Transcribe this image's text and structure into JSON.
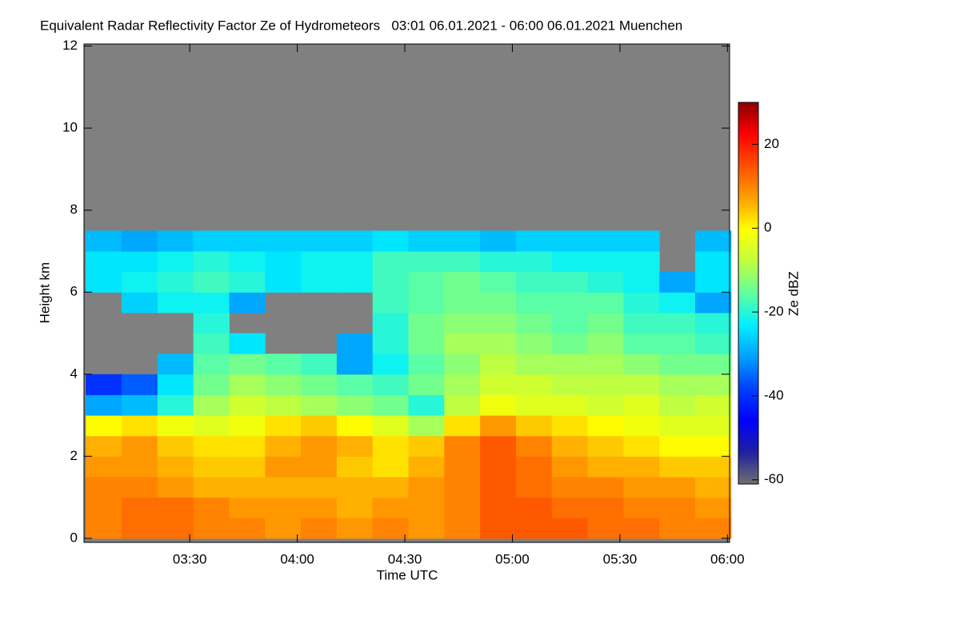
{
  "chart_data": {
    "type": "heatmap",
    "title": "Equivalent Radar Reflectivity Factor Ze of Hydrometeors   03:01 06.01.2021 - 06:00 06.01.2021 Muenchen",
    "x_label": "Time UTC",
    "y_label": "Height km",
    "colorbar_label": "Ze dBZ",
    "xlim": [
      180.5,
      360.6
    ],
    "xticks": [
      {
        "value": 210,
        "label": "03:30"
      },
      {
        "value": 240,
        "label": "04:00"
      },
      {
        "value": 270,
        "label": "04:30"
      },
      {
        "value": 300,
        "label": "05:00"
      },
      {
        "value": 330,
        "label": "05:30"
      },
      {
        "value": 360,
        "label": "06:00"
      }
    ],
    "ylim": [
      -0.1,
      12.05
    ],
    "yticks": [
      0,
      2,
      4,
      6,
      8,
      10,
      12
    ],
    "zlim": [
      -61,
      30
    ],
    "zticks": [
      -60,
      -40,
      -20,
      0,
      20
    ],
    "missing_color": "#808080",
    "colormap": [
      "#707070",
      "#2020a0",
      "#0000ff",
      "#0040ff",
      "#00a0ff",
      "#00f0ff",
      "#60ffa0",
      "#c0ff40",
      "#ffff00",
      "#ffa000",
      "#ff5000",
      "#ff0000",
      "#8b0000"
    ],
    "x_bins": [
      181,
      191,
      201,
      211,
      221,
      231,
      241,
      251,
      261,
      271,
      281,
      291,
      301,
      311,
      321,
      331,
      341,
      351,
      361
    ],
    "y_bins": [
      0,
      0.5,
      1,
      1.5,
      2,
      2.5,
      3,
      3.5,
      4,
      4.5,
      5,
      5.5,
      6,
      6.5,
      7,
      7.5
    ],
    "z": [
      [
        10,
        12,
        12,
        10,
        10,
        8,
        10,
        8,
        10,
        8,
        10,
        14,
        14,
        14,
        12,
        12,
        10,
        10
      ],
      [
        10,
        12,
        12,
        10,
        8,
        8,
        8,
        6,
        8,
        8,
        10,
        14,
        14,
        12,
        12,
        10,
        10,
        8
      ],
      [
        10,
        10,
        8,
        6,
        6,
        6,
        6,
        6,
        6,
        8,
        10,
        14,
        12,
        10,
        10,
        8,
        8,
        6
      ],
      [
        8,
        8,
        6,
        4,
        4,
        8,
        8,
        4,
        2,
        6,
        10,
        14,
        12,
        8,
        6,
        6,
        4,
        4
      ],
      [
        6,
        8,
        4,
        2,
        2,
        6,
        8,
        6,
        2,
        4,
        10,
        14,
        10,
        6,
        4,
        2,
        0,
        0
      ],
      [
        0,
        2,
        -2,
        -4,
        -2,
        2,
        4,
        0,
        -4,
        -10,
        2,
        8,
        4,
        2,
        0,
        -2,
        -4,
        -4
      ],
      [
        -30,
        -28,
        -20,
        -10,
        -6,
        -8,
        -10,
        -12,
        -14,
        -20,
        -8,
        -2,
        -4,
        -4,
        -6,
        -4,
        -8,
        -6
      ],
      [
        -40,
        -36,
        -24,
        -14,
        -10,
        -12,
        -14,
        -16,
        -18,
        -14,
        -10,
        -6,
        -6,
        -8,
        -8,
        -8,
        -10,
        -10
      ],
      [
        null,
        null,
        -28,
        -16,
        -14,
        -16,
        -18,
        -30,
        -22,
        -16,
        -12,
        -8,
        -10,
        -10,
        -10,
        -12,
        -14,
        -14
      ],
      [
        null,
        null,
        null,
        -18,
        -24,
        null,
        null,
        -30,
        -20,
        -14,
        -10,
        -10,
        -12,
        -14,
        -12,
        -16,
        -16,
        -18
      ],
      [
        null,
        null,
        null,
        -20,
        null,
        null,
        null,
        null,
        -20,
        -14,
        -12,
        -12,
        -14,
        -16,
        -14,
        -18,
        -18,
        -20
      ],
      [
        null,
        -26,
        -22,
        -22,
        -30,
        null,
        null,
        null,
        -18,
        -16,
        -14,
        -14,
        -16,
        -16,
        -16,
        -20,
        -22,
        -30
      ],
      [
        -24,
        -22,
        -20,
        -18,
        -20,
        -24,
        -22,
        -22,
        -18,
        -16,
        -14,
        -16,
        -18,
        -18,
        -20,
        -22,
        -30,
        -24
      ],
      [
        -24,
        -24,
        -22,
        -20,
        -22,
        -24,
        -22,
        -22,
        -18,
        -18,
        -18,
        -20,
        -20,
        -22,
        -22,
        -22,
        null,
        -24
      ],
      [
        -28,
        -30,
        -28,
        -26,
        -26,
        -26,
        -26,
        -26,
        -24,
        -26,
        -26,
        -28,
        -26,
        -26,
        -26,
        -26,
        null,
        -28
      ]
    ]
  }
}
